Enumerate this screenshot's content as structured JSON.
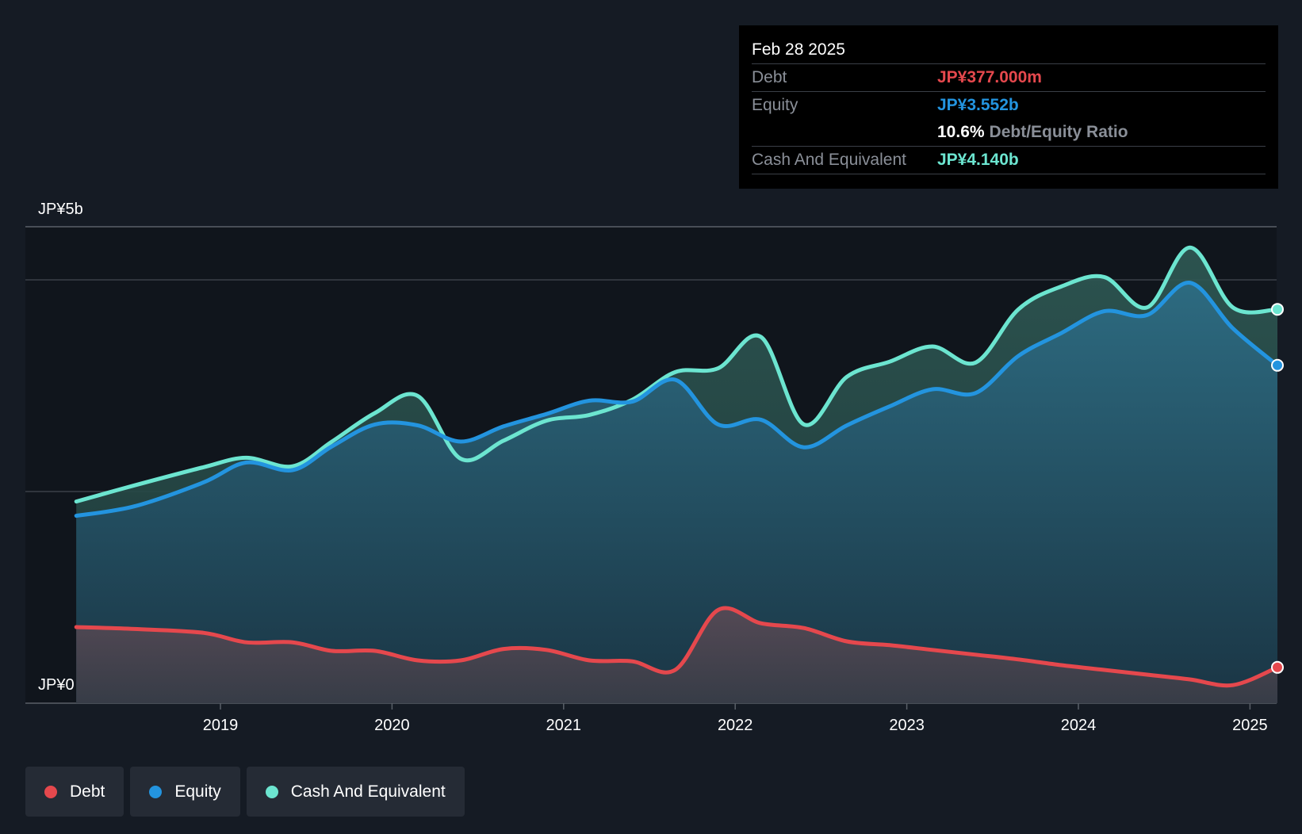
{
  "colors": {
    "debt": "#e5484d",
    "equity": "#2394df",
    "cash": "#6ce5d0",
    "background": "#151b24"
  },
  "tooltip": {
    "date": "Feb 28 2025",
    "debt_label": "Debt",
    "debt_value": "JP¥377.000m",
    "equity_label": "Equity",
    "equity_value": "JP¥3.552b",
    "ratio_value": "10.6%",
    "ratio_label": "Debt/Equity Ratio",
    "cash_label": "Cash And Equivalent",
    "cash_value": "JP¥4.140b"
  },
  "legend": [
    {
      "label": "Debt",
      "color": "#e5484d"
    },
    {
      "label": "Equity",
      "color": "#2394df"
    },
    {
      "label": "Cash And Equivalent",
      "color": "#6ce5d0"
    }
  ],
  "chart_data": {
    "type": "area",
    "title": "",
    "xlabel": "",
    "ylabel": "",
    "ylim": [
      0,
      5
    ],
    "y_unit": "JP¥ billions",
    "y_tick_labels": [
      "JP¥5b",
      "JP¥0"
    ],
    "x_tick_labels": [
      "2019",
      "2020",
      "2021",
      "2022",
      "2023",
      "2024",
      "2025"
    ],
    "x": [
      2018.16,
      2018.5,
      2018.9,
      2019.15,
      2019.42,
      2019.65,
      2019.9,
      2020.15,
      2020.4,
      2020.65,
      2020.9,
      2021.15,
      2021.4,
      2021.65,
      2021.9,
      2022.15,
      2022.4,
      2022.65,
      2022.9,
      2023.15,
      2023.4,
      2023.65,
      2023.9,
      2024.15,
      2024.4,
      2024.65,
      2024.9,
      2025.16
    ],
    "series": [
      {
        "name": "Debt",
        "color": "#e5484d",
        "values": [
          0.8,
          0.78,
          0.74,
          0.64,
          0.64,
          0.55,
          0.55,
          0.45,
          0.45,
          0.57,
          0.56,
          0.45,
          0.44,
          0.35,
          0.98,
          0.84,
          0.79,
          0.65,
          0.61,
          0.56,
          0.51,
          0.46,
          0.4,
          0.35,
          0.3,
          0.25,
          0.19,
          0.377
        ]
      },
      {
        "name": "Equity",
        "color": "#2394df",
        "values": [
          1.97,
          2.07,
          2.32,
          2.53,
          2.45,
          2.7,
          2.93,
          2.92,
          2.75,
          2.91,
          3.04,
          3.18,
          3.17,
          3.4,
          2.93,
          2.98,
          2.69,
          2.92,
          3.12,
          3.3,
          3.26,
          3.65,
          3.89,
          4.12,
          4.08,
          4.42,
          3.94,
          3.552
        ]
      },
      {
        "name": "Cash And Equivalent",
        "color": "#6ce5d0",
        "values": [
          2.12,
          2.29,
          2.48,
          2.58,
          2.49,
          2.75,
          3.05,
          3.23,
          2.57,
          2.76,
          2.97,
          3.03,
          3.19,
          3.48,
          3.52,
          3.85,
          2.93,
          3.43,
          3.59,
          3.75,
          3.58,
          4.14,
          4.38,
          4.48,
          4.16,
          4.79,
          4.16,
          4.14
        ]
      }
    ],
    "grid": true,
    "legend_position": "bottom-left"
  }
}
